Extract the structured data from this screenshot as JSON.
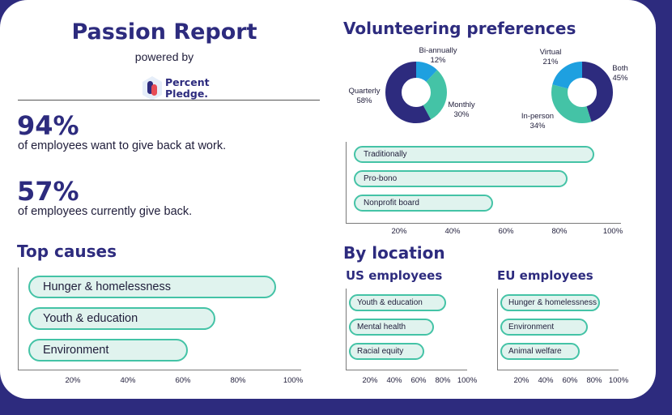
{
  "header": {
    "title": "Passion Report",
    "powered_by": "powered by",
    "logo_line1": "Percent",
    "logo_line2": "Pledge."
  },
  "stats": [
    {
      "value": "94%",
      "text": "of employees want to give back at work."
    },
    {
      "value": "57%",
      "text": "of employees currently give back."
    }
  ],
  "colors": {
    "frame": "#2d2b7e",
    "navy": "#2d2b7e",
    "sky": "#1ea0e0",
    "teal": "#44c3a6",
    "bar_fill": "#e0f3ee"
  },
  "chart_data": [
    {
      "id": "top_causes",
      "type": "bar",
      "orientation": "horizontal",
      "title": "Top causes",
      "categories": [
        "Hunger & homelessness",
        "Youth & education",
        "Environment"
      ],
      "values": [
        90,
        68,
        58
      ],
      "xticks": [
        "20%",
        "40%",
        "60%",
        "80%",
        "100%"
      ],
      "xlim": [
        0,
        100
      ]
    },
    {
      "id": "volunteering_frequency",
      "type": "pie",
      "donut": true,
      "title": "Volunteering preferences",
      "slices": [
        {
          "label": "Bi-annually",
          "pct": "12%",
          "value": 12,
          "color": "#1ea0e0"
        },
        {
          "label": "Monthly",
          "pct": "30%",
          "value": 30,
          "color": "#44c3a6"
        },
        {
          "label": "Quarterly",
          "pct": "58%",
          "value": 58,
          "color": "#2d2b7e"
        }
      ]
    },
    {
      "id": "volunteering_mode",
      "type": "pie",
      "donut": true,
      "slices": [
        {
          "label": "Both",
          "pct": "45%",
          "value": 45,
          "color": "#2d2b7e"
        },
        {
          "label": "In-person",
          "pct": "34%",
          "value": 34,
          "color": "#44c3a6"
        },
        {
          "label": "Virtual",
          "pct": "21%",
          "value": 21,
          "color": "#1ea0e0"
        }
      ]
    },
    {
      "id": "volunteering_type",
      "type": "bar",
      "orientation": "horizontal",
      "categories": [
        "Traditionally",
        "Pro-bono",
        "Nonprofit board"
      ],
      "values": [
        90,
        80,
        52
      ],
      "xticks": [
        "20%",
        "40%",
        "60%",
        "80%",
        "100%"
      ],
      "xlim": [
        0,
        100
      ]
    },
    {
      "id": "us_employees",
      "type": "bar",
      "orientation": "horizontal",
      "section": "By location",
      "title": "US employees",
      "categories": [
        "Youth & education",
        "Mental health",
        "Racial equity"
      ],
      "values": [
        80,
        70,
        62
      ],
      "xticks": [
        "20%",
        "40%",
        "60%",
        "80%",
        "100%"
      ],
      "xlim": [
        0,
        100
      ]
    },
    {
      "id": "eu_employees",
      "type": "bar",
      "orientation": "horizontal",
      "title": "EU employees",
      "categories": [
        "Hunger & homelessness",
        "Environment",
        "Animal welfare"
      ],
      "values": [
        82,
        72,
        65
      ],
      "xticks": [
        "20%",
        "40%",
        "60%",
        "80%",
        "100%"
      ],
      "xlim": [
        0,
        100
      ]
    }
  ]
}
